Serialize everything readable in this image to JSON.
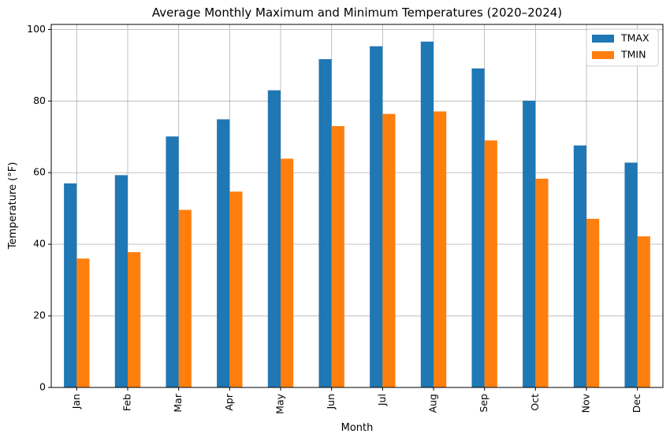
{
  "chart_data": {
    "type": "bar",
    "title": "Average Monthly Maximum and Minimum Temperatures (2020–2024)",
    "xlabel": "Month",
    "ylabel": "Temperature (°F)",
    "categories": [
      "Jan",
      "Feb",
      "Mar",
      "Apr",
      "May",
      "Jun",
      "Jul",
      "Aug",
      "Sep",
      "Oct",
      "Nov",
      "Dec"
    ],
    "series": [
      {
        "name": "TMAX",
        "color": "#1f77b4",
        "values": [
          57.0,
          59.3,
          70.1,
          74.9,
          83.0,
          91.7,
          95.3,
          96.6,
          89.1,
          80.1,
          67.6,
          62.8
        ]
      },
      {
        "name": "TMIN",
        "color": "#ff7f0e",
        "values": [
          36.0,
          37.8,
          49.6,
          54.7,
          63.9,
          73.0,
          76.4,
          77.1,
          69.0,
          58.3,
          47.1,
          42.2
        ]
      }
    ],
    "ylim": [
      0,
      101.4
    ],
    "yticks": [
      0,
      20,
      40,
      60,
      80,
      100
    ],
    "grid": true,
    "legend_position": "top-right"
  }
}
